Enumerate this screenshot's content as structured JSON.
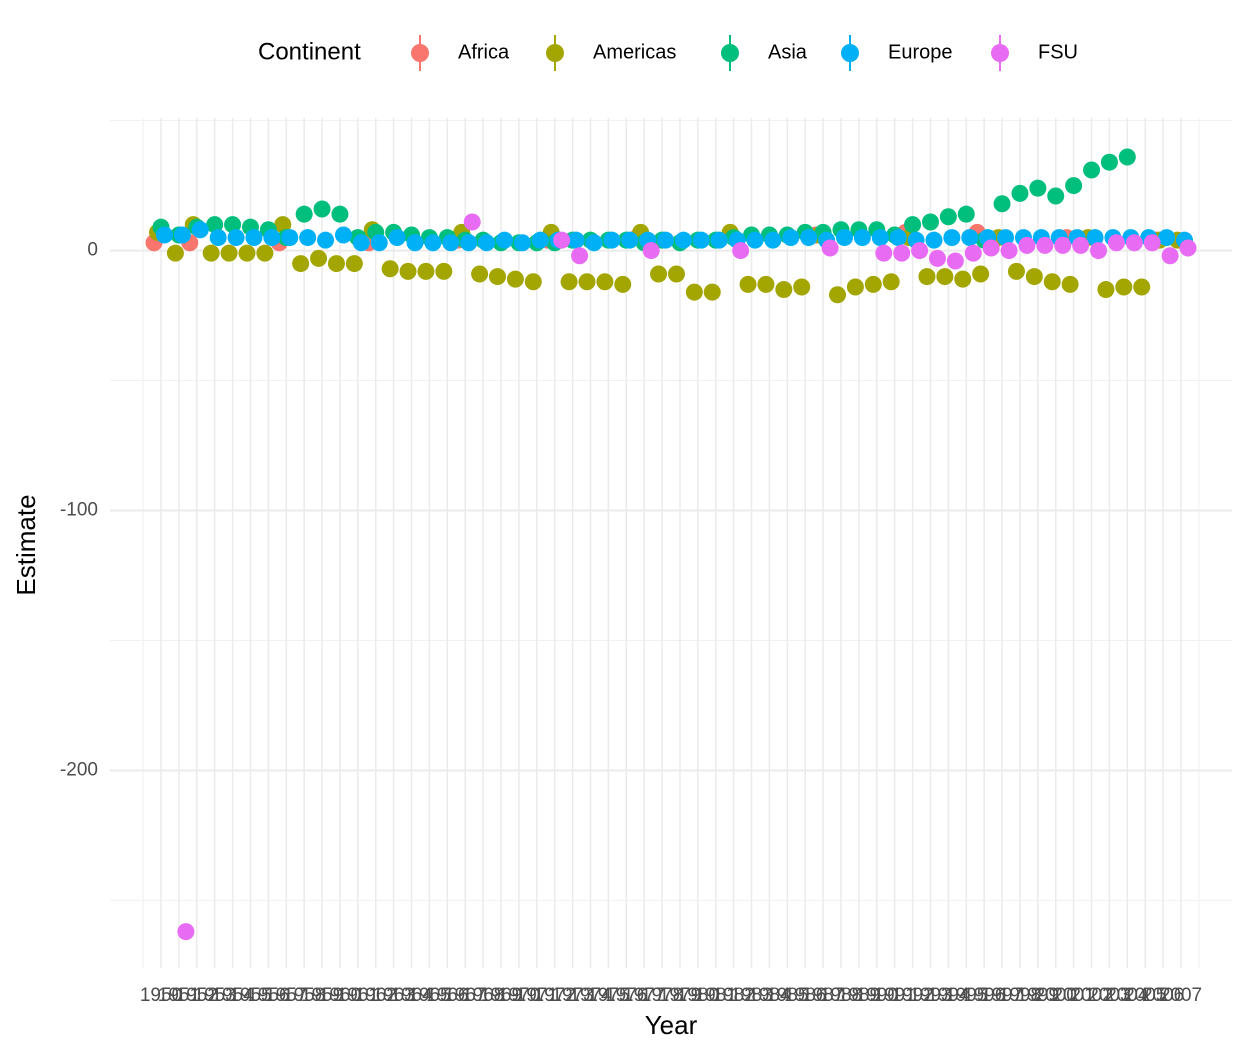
{
  "chart_data": {
    "type": "scatter",
    "x_label": "Year",
    "y_label": "Estimate",
    "legend_title": "Continent",
    "legend_position": "top",
    "x": [
      "1950",
      "1951",
      "1952",
      "1953",
      "1954",
      "1955",
      "1956",
      "1957",
      "1958",
      "1959",
      "1960",
      "1961",
      "1962",
      "1963",
      "1964",
      "1965",
      "1966",
      "1967",
      "1968",
      "1969",
      "1970",
      "1971",
      "1972",
      "1973",
      "1974",
      "1975",
      "1976",
      "1977",
      "1978",
      "1979",
      "1980",
      "1981",
      "1982",
      "1983",
      "1984",
      "1985",
      "1986",
      "1987",
      "1988",
      "1989",
      "1990",
      "1991",
      "1992",
      "1993",
      "1994",
      "1995",
      "1996",
      "1997",
      "1998",
      "1999",
      "2000",
      "2001",
      "2002",
      "2003",
      "2004",
      "2005",
      "2006",
      "2007"
    ],
    "ylim": [
      -276,
      51
    ],
    "yticks": [
      -200,
      -100,
      0
    ],
    "minor_yticks": [
      -250,
      -150,
      -50,
      50
    ],
    "grid": true,
    "series": [
      {
        "name": "Africa",
        "color": "#F8766D",
        "values": [
          3,
          null,
          3,
          null,
          null,
          null,
          null,
          3,
          null,
          null,
          null,
          null,
          3,
          null,
          null,
          null,
          null,
          4,
          null,
          null,
          null,
          null,
          4,
          null,
          null,
          null,
          null,
          5,
          null,
          null,
          null,
          null,
          null,
          null,
          null,
          null,
          null,
          6,
          null,
          null,
          null,
          null,
          7,
          null,
          null,
          null,
          7,
          null,
          null,
          null,
          null,
          5,
          null,
          null,
          null,
          null,
          4,
          null
        ]
      },
      {
        "name": "Americas",
        "color": "#A3A500",
        "values": [
          7,
          -1,
          10,
          -1,
          -1,
          -1,
          -1,
          10,
          -5,
          -3,
          -5,
          -5,
          8,
          -7,
          -8,
          -8,
          -8,
          7,
          -9,
          -10,
          -11,
          -12,
          7,
          -12,
          -12,
          -12,
          -13,
          7,
          -9,
          -9,
          -16,
          -16,
          7,
          -13,
          -13,
          -15,
          -14,
          6,
          -17,
          -14,
          -13,
          -12,
          5,
          -10,
          -10,
          -11,
          -9,
          5,
          -8,
          -10,
          -12,
          -13,
          5,
          -15,
          -14,
          -14,
          4,
          4
        ]
      },
      {
        "name": "Asia",
        "color": "#00BF7D",
        "values": [
          9,
          6,
          9,
          10,
          10,
          9,
          8,
          5,
          14,
          16,
          14,
          5,
          7,
          7,
          6,
          5,
          5,
          4,
          4,
          3,
          3,
          3,
          3,
          4,
          4,
          4,
          4,
          3,
          4,
          3,
          4,
          4,
          5,
          6,
          6,
          6,
          7,
          7,
          8,
          8,
          8,
          6,
          10,
          11,
          13,
          14,
          4,
          18,
          22,
          24,
          21,
          25,
          31,
          34,
          36,
          null,
          null,
          null
        ]
      },
      {
        "name": "Europe",
        "color": "#00B0F6",
        "values": [
          6,
          6,
          8,
          5,
          5,
          5,
          5,
          5,
          5,
          4,
          6,
          3,
          3,
          5,
          3,
          3,
          3,
          3,
          3,
          4,
          3,
          4,
          4,
          4,
          3,
          4,
          4,
          4,
          4,
          4,
          4,
          4,
          4,
          4,
          4,
          5,
          5,
          4,
          5,
          5,
          5,
          5,
          4,
          4,
          5,
          5,
          5,
          5,
          5,
          5,
          5,
          5,
          5,
          5,
          5,
          5,
          5,
          4
        ]
      },
      {
        "name": "FSU",
        "color": "#E76BF3",
        "values": [
          null,
          -262,
          null,
          null,
          null,
          null,
          null,
          null,
          null,
          null,
          null,
          null,
          null,
          null,
          null,
          null,
          null,
          11,
          null,
          null,
          null,
          null,
          4,
          -2,
          null,
          null,
          null,
          0,
          null,
          null,
          null,
          null,
          0,
          null,
          null,
          null,
          null,
          1,
          null,
          null,
          -1,
          -1,
          0,
          -3,
          -4,
          -1,
          1,
          0,
          2,
          2,
          2,
          2,
          0,
          3,
          3,
          3,
          -2,
          1
        ]
      }
    ]
  }
}
